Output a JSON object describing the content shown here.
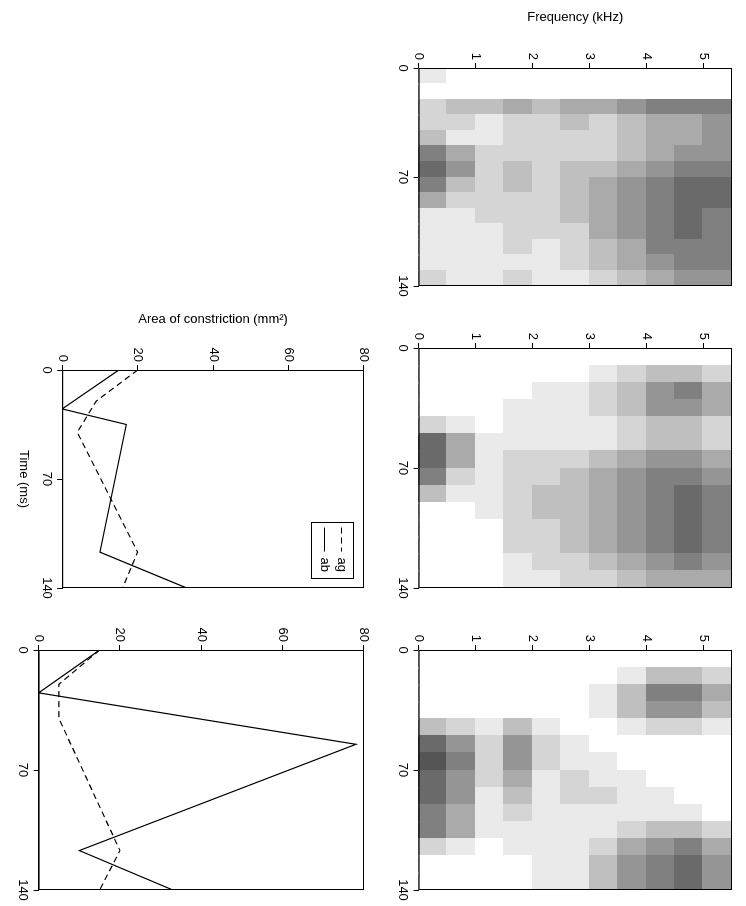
{
  "chart_data": [
    {
      "type": "heatmap",
      "ylabel": "Frequency (kHz)",
      "xlim": [
        0,
        140
      ],
      "xticks": [
        0,
        70,
        140
      ],
      "ylim": [
        0,
        5.5
      ],
      "yticks": [
        0,
        1,
        2,
        3,
        4,
        5
      ],
      "grid": false,
      "color": "#000000",
      "zlim": [
        0,
        12
      ],
      "time_bins": [
        0,
        10,
        20,
        30,
        40,
        50,
        60,
        70,
        80,
        90,
        100,
        110,
        120,
        130,
        140
      ],
      "freq_bins": [
        0,
        0.5,
        1,
        1.5,
        2,
        2.5,
        3,
        3.5,
        4,
        4.5,
        5,
        5.5
      ],
      "cells": [
        [
          1,
          0,
          2,
          2,
          3,
          6,
          7,
          6,
          4,
          1,
          1,
          1,
          1,
          2
        ],
        [
          0,
          0,
          3,
          2,
          1,
          4,
          5,
          3,
          2,
          1,
          1,
          1,
          1,
          1
        ],
        [
          0,
          0,
          3,
          1,
          1,
          2,
          2,
          2,
          2,
          2,
          1,
          1,
          1,
          1
        ],
        [
          0,
          0,
          4,
          2,
          2,
          2,
          3,
          3,
          2,
          2,
          2,
          2,
          1,
          2
        ],
        [
          0,
          0,
          3,
          2,
          2,
          2,
          2,
          2,
          2,
          2,
          2,
          1,
          1,
          1
        ],
        [
          0,
          0,
          4,
          3,
          2,
          2,
          3,
          3,
          3,
          3,
          2,
          2,
          2,
          1
        ],
        [
          0,
          0,
          4,
          2,
          2,
          2,
          3,
          4,
          4,
          4,
          4,
          3,
          3,
          2
        ],
        [
          0,
          0,
          5,
          3,
          3,
          3,
          4,
          5,
          5,
          5,
          5,
          4,
          4,
          3
        ],
        [
          0,
          0,
          6,
          4,
          4,
          4,
          5,
          6,
          6,
          6,
          6,
          6,
          5,
          4
        ],
        [
          0,
          0,
          6,
          4,
          4,
          5,
          6,
          7,
          7,
          7,
          7,
          6,
          6,
          5
        ],
        [
          0,
          0,
          6,
          5,
          5,
          5,
          6,
          7,
          7,
          6,
          6,
          6,
          6,
          5
        ]
      ]
    },
    {
      "type": "heatmap",
      "xlim": [
        0,
        140
      ],
      "xticks": [
        0,
        70,
        140
      ],
      "ylim": [
        0,
        5.5
      ],
      "yticks": [
        0,
        1,
        2,
        3,
        4,
        5
      ],
      "grid": false,
      "color": "#000000",
      "zlim": [
        0,
        12
      ],
      "time_bins": [
        0,
        10,
        20,
        30,
        40,
        50,
        60,
        70,
        80,
        90,
        100,
        110,
        120,
        130,
        140
      ],
      "freq_bins": [
        0,
        0.5,
        1,
        1.5,
        2,
        2.5,
        3,
        3.5,
        4,
        4.5,
        5,
        5.5
      ],
      "cells": [
        [
          0,
          0,
          0,
          0,
          2,
          7,
          7,
          6,
          3,
          0,
          0,
          0,
          0,
          0
        ],
        [
          0,
          0,
          0,
          0,
          1,
          4,
          4,
          2,
          1,
          0,
          0,
          0,
          0,
          0
        ],
        [
          0,
          0,
          0,
          0,
          0,
          1,
          1,
          1,
          1,
          1,
          0,
          0,
          0,
          0
        ],
        [
          0,
          0,
          0,
          1,
          1,
          1,
          2,
          2,
          2,
          2,
          2,
          2,
          1,
          1
        ],
        [
          0,
          0,
          1,
          1,
          1,
          1,
          2,
          2,
          3,
          3,
          2,
          2,
          2,
          1
        ],
        [
          0,
          0,
          1,
          1,
          1,
          1,
          2,
          3,
          3,
          3,
          3,
          3,
          2,
          2
        ],
        [
          0,
          1,
          2,
          2,
          1,
          1,
          3,
          4,
          4,
          4,
          4,
          4,
          3,
          2
        ],
        [
          0,
          2,
          3,
          3,
          2,
          2,
          4,
          5,
          5,
          5,
          5,
          5,
          4,
          3
        ],
        [
          0,
          3,
          5,
          5,
          3,
          3,
          5,
          6,
          6,
          6,
          6,
          6,
          5,
          4
        ],
        [
          0,
          3,
          6,
          5,
          3,
          3,
          5,
          6,
          7,
          7,
          7,
          7,
          6,
          4
        ],
        [
          0,
          2,
          4,
          4,
          2,
          2,
          4,
          5,
          6,
          6,
          6,
          6,
          5,
          4
        ]
      ]
    },
    {
      "type": "heatmap",
      "xlim": [
        0,
        140
      ],
      "xticks": [
        0,
        70,
        140
      ],
      "ylim": [
        0,
        5.5
      ],
      "yticks": [
        0,
        1,
        2,
        3,
        4,
        5
      ],
      "grid": false,
      "color": "#000000",
      "zlim": [
        0,
        12
      ],
      "time_bins": [
        0,
        10,
        20,
        30,
        40,
        50,
        60,
        70,
        80,
        90,
        100,
        110,
        120,
        130,
        140
      ],
      "freq_bins": [
        0,
        0.5,
        1,
        1.5,
        2,
        2.5,
        3,
        3.5,
        4,
        4.5,
        5,
        5.5
      ],
      "cells": [
        [
          0,
          0,
          0,
          0,
          3,
          7,
          8,
          7,
          7,
          6,
          6,
          2,
          0,
          0
        ],
        [
          0,
          0,
          0,
          0,
          2,
          5,
          6,
          5,
          5,
          4,
          4,
          1,
          0,
          0
        ],
        [
          0,
          0,
          0,
          0,
          1,
          2,
          2,
          2,
          1,
          1,
          1,
          0,
          0,
          0
        ],
        [
          0,
          0,
          0,
          0,
          3,
          5,
          5,
          4,
          3,
          2,
          1,
          1,
          0,
          0
        ],
        [
          0,
          0,
          0,
          0,
          1,
          2,
          2,
          1,
          1,
          1,
          1,
          1,
          1,
          1
        ],
        [
          0,
          0,
          0,
          0,
          0,
          1,
          1,
          2,
          2,
          1,
          1,
          1,
          1,
          1
        ],
        [
          0,
          0,
          1,
          1,
          0,
          0,
          1,
          1,
          2,
          1,
          1,
          2,
          3,
          3
        ],
        [
          0,
          1,
          3,
          3,
          1,
          0,
          0,
          1,
          1,
          1,
          2,
          4,
          5,
          5
        ],
        [
          0,
          3,
          6,
          5,
          2,
          0,
          0,
          0,
          1,
          1,
          3,
          5,
          6,
          6
        ],
        [
          0,
          3,
          6,
          5,
          2,
          0,
          0,
          0,
          0,
          1,
          3,
          6,
          7,
          7
        ],
        [
          0,
          2,
          4,
          3,
          1,
          0,
          0,
          0,
          0,
          0,
          2,
          4,
          5,
          5
        ]
      ]
    },
    {
      "type": "line",
      "xlabel": "Time (ms)",
      "ylabel": "Area of constriction (mm²)",
      "xlim": [
        0,
        140
      ],
      "xticks": [
        0,
        70,
        140
      ],
      "ylim": [
        0,
        80
      ],
      "yticks": [
        0,
        20,
        40,
        60,
        80
      ],
      "grid": false,
      "legend": "upper right",
      "series": [
        {
          "name": "ag",
          "color": "#000000",
          "line_style": "dashed",
          "x": [
            0,
            20,
            40,
            117,
            140
          ],
          "values": [
            20,
            9,
            4,
            20,
            16
          ]
        },
        {
          "name": "ab",
          "color": "#000000",
          "line_style": "solid",
          "x": [
            0,
            25,
            35,
            117,
            140
          ],
          "values": [
            15,
            0,
            17,
            10,
            33
          ]
        }
      ]
    },
    {
      "type": "line",
      "xlim": [
        0,
        140
      ],
      "xticks": [
        0,
        70,
        140
      ],
      "ylim": [
        0,
        80
      ],
      "yticks": [
        0,
        20,
        40,
        60,
        80
      ],
      "grid": false,
      "series": [
        {
          "color": "#000000",
          "line_style": "dashed",
          "x": [
            0,
            20,
            40,
            117,
            140
          ],
          "values": [
            15,
            5,
            5,
            20,
            15
          ]
        },
        {
          "color": "#000000",
          "line_style": "solid",
          "x": [
            0,
            25,
            55,
            117,
            140
          ],
          "values": [
            15,
            0,
            78,
            10,
            33
          ]
        }
      ]
    }
  ]
}
